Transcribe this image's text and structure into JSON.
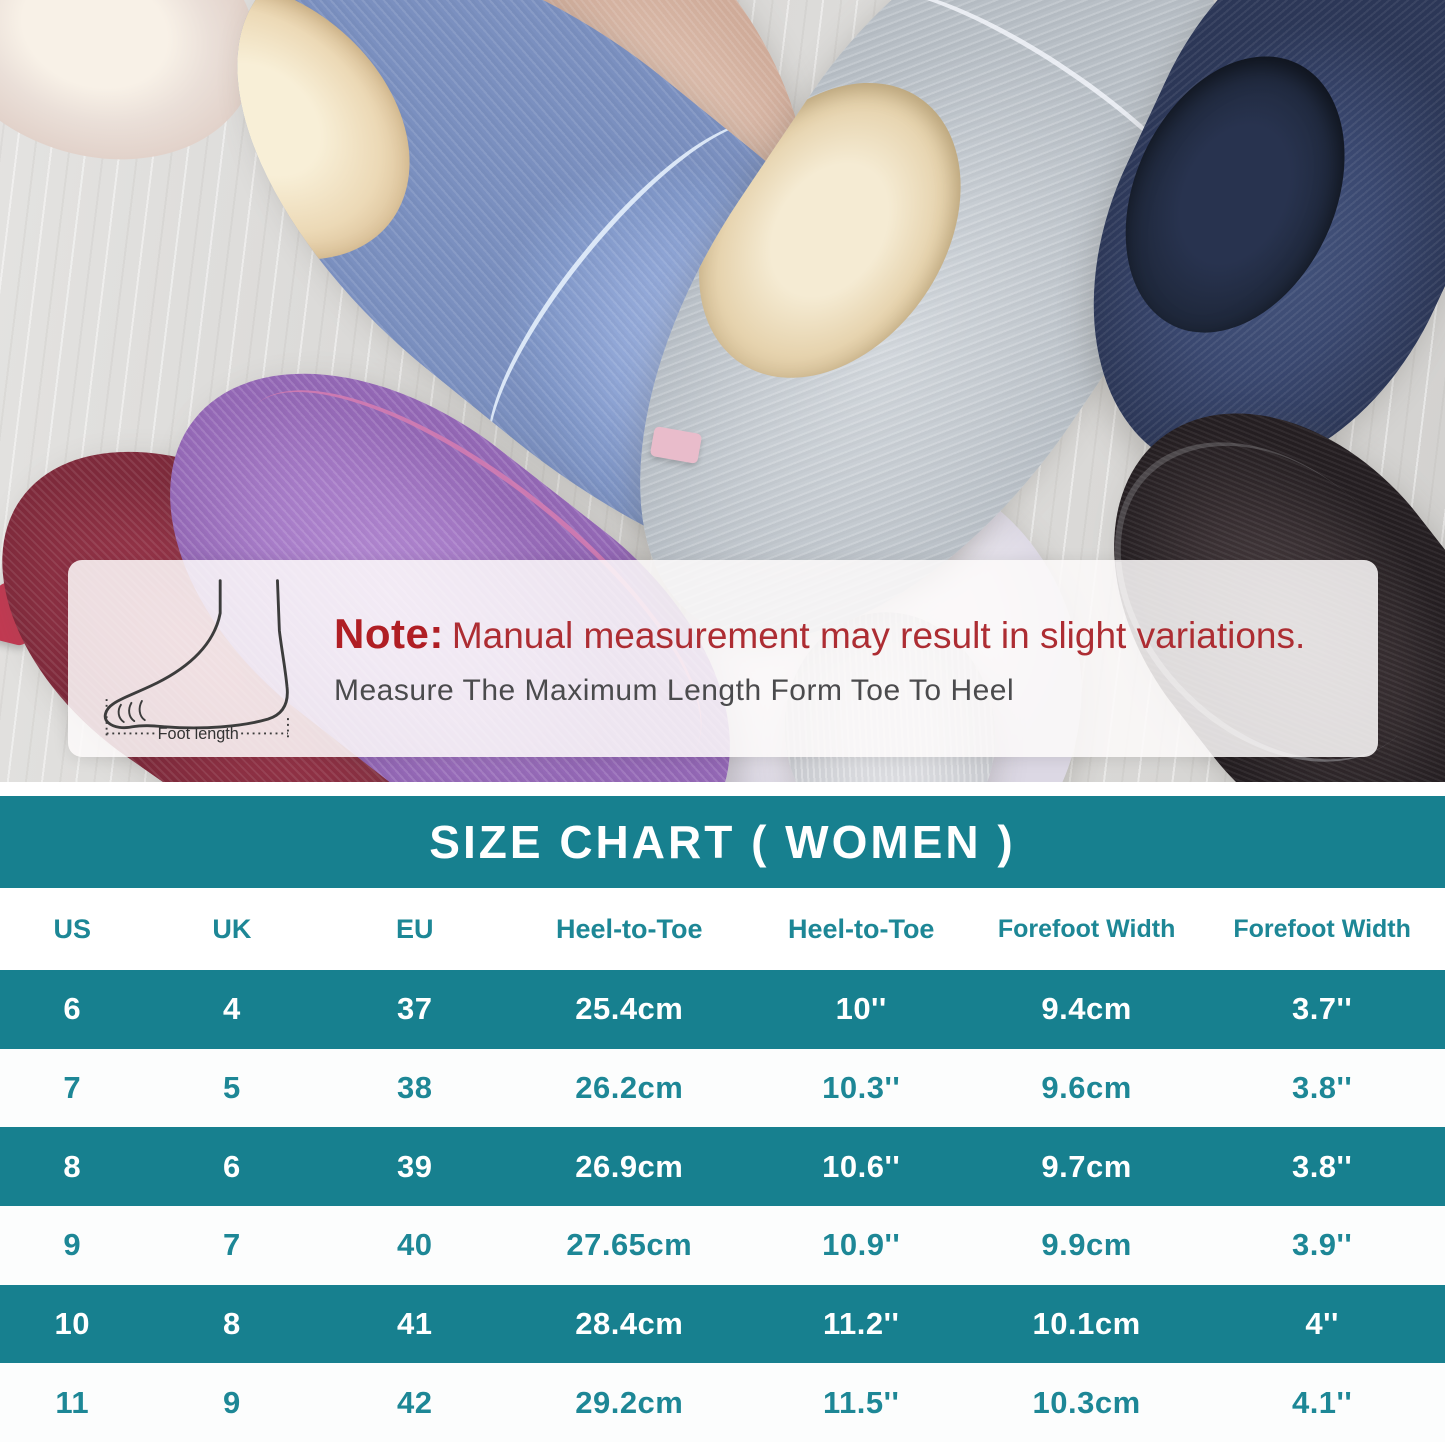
{
  "note": {
    "label": "Note:",
    "text": "Manual measurement may result in slight variations.",
    "subtext": "Measure The Maximum Length Form Toe To Heel",
    "foot_label": "Foot length"
  },
  "photo": {
    "items": [
      "blue slipper",
      "beige slipper",
      "gray slipper",
      "navy slipper",
      "dark brown slipper",
      "purple slipper",
      "burgundy slipper",
      "white slipper"
    ]
  },
  "chart_data": {
    "type": "table",
    "title": "SIZE CHART ( WOMEN )",
    "columns": [
      "US",
      "UK",
      "EU",
      "Heel-to-Toe",
      "Heel-to-Toe",
      "Forefoot Width",
      "Forefoot Width"
    ],
    "rows": [
      [
        "6",
        "4",
        "37",
        "25.4cm",
        "10''",
        "9.4cm",
        "3.7''"
      ],
      [
        "7",
        "5",
        "38",
        "26.2cm",
        "10.3''",
        "9.6cm",
        "3.8''"
      ],
      [
        "8",
        "6",
        "39",
        "26.9cm",
        "10.6''",
        "9.7cm",
        "3.8''"
      ],
      [
        "9",
        "7",
        "40",
        "27.65cm",
        "10.9''",
        "9.9cm",
        "3.9''"
      ],
      [
        "10",
        "8",
        "41",
        "28.4cm",
        "11.2''",
        "10.1cm",
        "4''"
      ],
      [
        "11",
        "9",
        "42",
        "29.2cm",
        "11.5''",
        "10.3cm",
        "4.1''"
      ]
    ],
    "layout": {
      "row_alternation": [
        "teal",
        "white"
      ],
      "header_text_color": "teal",
      "grid": "off"
    }
  },
  "colors": {
    "teal": "#17808f",
    "note_red_bold": "#b01e24",
    "note_red": "#ad2d33",
    "note_gray": "#4b4b4d",
    "white": "#ffffff"
  }
}
